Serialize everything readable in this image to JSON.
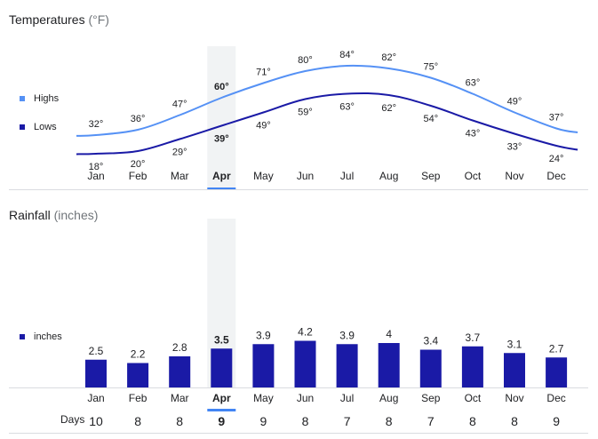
{
  "temperatures": {
    "title": "Temperatures",
    "unit": "(°F)",
    "legend": [
      {
        "label": "Highs",
        "color": "#5591f5"
      },
      {
        "label": "Lows",
        "color": "#1a1aa6"
      }
    ],
    "selected_month": "Apr"
  },
  "rainfall": {
    "title": "Rainfall",
    "unit": "(inches)",
    "legend": [
      {
        "label": "inches",
        "color": "#1a1aa6"
      }
    ],
    "days_label": "Days",
    "selected_month": "Apr"
  },
  "accent_color": "#4285f4",
  "chart_data": [
    {
      "type": "line",
      "title": "Temperatures (°F)",
      "categories": [
        "Jan",
        "Feb",
        "Mar",
        "Apr",
        "May",
        "Jun",
        "Jul",
        "Aug",
        "Sep",
        "Oct",
        "Nov",
        "Dec"
      ],
      "series": [
        {
          "name": "Highs",
          "values": [
            32,
            36,
            47,
            60,
            71,
            80,
            84,
            82,
            75,
            63,
            49,
            37
          ],
          "labels": [
            "32°",
            "36°",
            "47°",
            "60°",
            "71°",
            "80°",
            "84°",
            "82°",
            "75°",
            "63°",
            "49°",
            "37°"
          ]
        },
        {
          "name": "Lows",
          "values": [
            18,
            20,
            29,
            39,
            49,
            59,
            63,
            62,
            54,
            43,
            33,
            24
          ],
          "labels": [
            "18°",
            "20°",
            "29°",
            "39°",
            "49°",
            "59°",
            "63°",
            "62°",
            "54°",
            "43°",
            "33°",
            "24°"
          ]
        }
      ],
      "xlabel": "",
      "ylabel": "°F",
      "ylim": [
        10,
        90
      ]
    },
    {
      "type": "bar",
      "title": "Rainfall (inches)",
      "categories": [
        "Jan",
        "Feb",
        "Mar",
        "Apr",
        "May",
        "Jun",
        "Jul",
        "Aug",
        "Sep",
        "Oct",
        "Nov",
        "Dec"
      ],
      "series": [
        {
          "name": "inches",
          "values": [
            2.5,
            2.2,
            2.8,
            3.5,
            3.9,
            4.2,
            3.9,
            4,
            3.4,
            3.7,
            3.1,
            2.7
          ],
          "labels": [
            "2.5",
            "2.2",
            "2.8",
            "3.5",
            "3.9",
            "4.2",
            "3.9",
            "4",
            "3.4",
            "3.7",
            "3.1",
            "2.7"
          ]
        }
      ],
      "days": [
        "10",
        "8",
        "8",
        "9",
        "9",
        "8",
        "7",
        "8",
        "7",
        "8",
        "8",
        "9"
      ],
      "xlabel": "",
      "ylabel": "inches",
      "ylim": [
        0,
        5
      ]
    }
  ]
}
